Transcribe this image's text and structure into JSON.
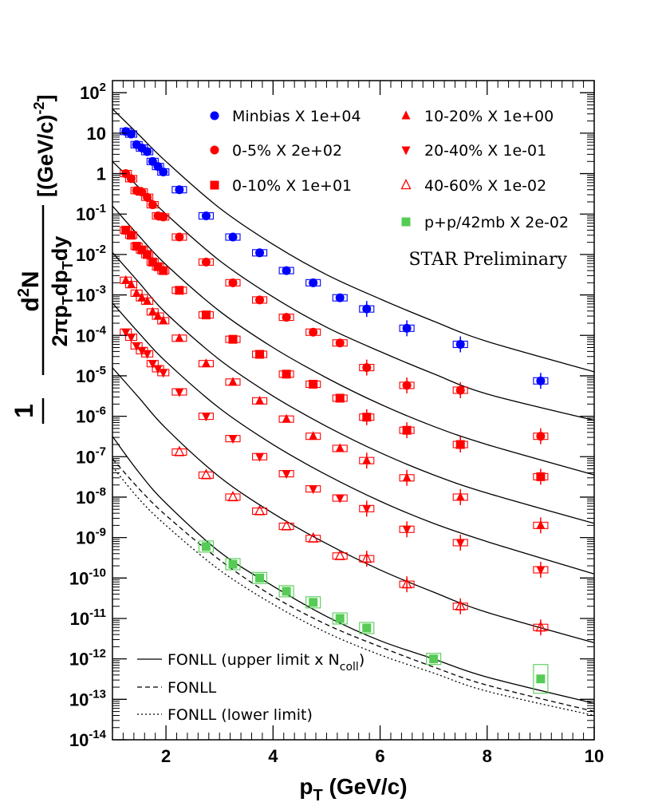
{
  "chart_data": {
    "type": "scatter",
    "x_axis": {
      "label": "p",
      "label_sub": "T",
      "label_unit": "(GeV/c)",
      "range": [
        1,
        10
      ],
      "ticks": [
        2,
        4,
        6,
        8,
        10
      ],
      "tick_labels": [
        "2",
        "4",
        "6",
        "8",
        "10"
      ]
    },
    "y_axis": {
      "scale": "log",
      "range_exp": [
        -14,
        2.3
      ],
      "ticks": [
        {
          "exp": 2,
          "base": "10",
          "sup": "2"
        },
        {
          "exp": 1,
          "base": "10",
          "sup": ""
        },
        {
          "exp": 0,
          "base": "1",
          "sup": ""
        },
        {
          "exp": -1,
          "base": "10",
          "sup": "-1"
        },
        {
          "exp": -2,
          "base": "10",
          "sup": "-2"
        },
        {
          "exp": -3,
          "base": "10",
          "sup": "-3"
        },
        {
          "exp": -4,
          "base": "10",
          "sup": "-4"
        },
        {
          "exp": -5,
          "base": "10",
          "sup": "-5"
        },
        {
          "exp": -6,
          "base": "10",
          "sup": "-6"
        },
        {
          "exp": -7,
          "base": "10",
          "sup": "-7"
        },
        {
          "exp": -8,
          "base": "10",
          "sup": "-8"
        },
        {
          "exp": -9,
          "base": "10",
          "sup": "-9"
        },
        {
          "exp": -10,
          "base": "10",
          "sup": "-10"
        },
        {
          "exp": -11,
          "base": "10",
          "sup": "-11"
        },
        {
          "exp": -12,
          "base": "10",
          "sup": "-12"
        },
        {
          "exp": -13,
          "base": "10",
          "sup": "-13"
        },
        {
          "exp": -14,
          "base": "10",
          "sup": "-14"
        }
      ],
      "label_frac_num_pre": "d",
      "label_frac_num_sup": "2",
      "label_frac_num_post": "N",
      "label_frac_den": "2πp",
      "label_frac_den_sub1": "T",
      "label_frac_den_mid": "dp",
      "label_frac_den_sub2": "T",
      "label_frac_den_post": "dy",
      "label_one": "1",
      "label_unit_pre": "[(GeV/c)",
      "label_unit_sup": "-2",
      "label_unit_post": "]"
    },
    "annotation": "STAR Preliminary",
    "series": [
      {
        "name": "Minbias X 1e+04",
        "marker": "circle",
        "color": "#0000ff",
        "box_color": "#0000ff",
        "points": [
          [
            1.25,
            11
          ],
          [
            1.35,
            9.5
          ],
          [
            1.45,
            5.2
          ],
          [
            1.55,
            4.3
          ],
          [
            1.65,
            3.5
          ],
          [
            1.75,
            2.0
          ],
          [
            1.85,
            1.5
          ],
          [
            1.95,
            1.1
          ],
          [
            2.25,
            0.4
          ],
          [
            2.75,
            0.09
          ],
          [
            3.25,
            0.027
          ],
          [
            3.75,
            0.011
          ],
          [
            4.25,
            0.004
          ],
          [
            4.75,
            0.002
          ],
          [
            5.25,
            0.00085
          ],
          [
            5.75,
            0.00045
          ],
          [
            6.5,
            0.00015
          ],
          [
            7.5,
            6e-05
          ],
          [
            9.0,
            7.5e-06
          ]
        ]
      },
      {
        "name": "0-5% X 2e+02",
        "marker": "circle",
        "color": "#ff0000",
        "box_color": "#ff0000",
        "points": [
          [
            1.25,
            1.0
          ],
          [
            1.35,
            0.75
          ],
          [
            1.45,
            0.38
          ],
          [
            1.55,
            0.35
          ],
          [
            1.65,
            0.26
          ],
          [
            1.75,
            0.17
          ],
          [
            1.85,
            0.09
          ],
          [
            1.95,
            0.085
          ],
          [
            2.25,
            0.027
          ],
          [
            2.75,
            0.0065
          ],
          [
            3.25,
            0.002
          ],
          [
            3.75,
            0.00075
          ],
          [
            4.25,
            0.00028
          ],
          [
            4.75,
            0.00012
          ],
          [
            5.25,
            6.5e-05
          ],
          [
            5.75,
            1.6e-05
          ],
          [
            6.5,
            5.8e-06
          ],
          [
            7.5,
            4.4e-06
          ],
          [
            9.0,
            3.2e-07
          ]
        ]
      },
      {
        "name": "0-10% X 1e+01",
        "marker": "square",
        "color": "#ff0000",
        "box_color": "#ff0000",
        "points": [
          [
            1.25,
            0.04
          ],
          [
            1.35,
            0.03
          ],
          [
            1.45,
            0.016
          ],
          [
            1.55,
            0.013
          ],
          [
            1.65,
            0.01
          ],
          [
            1.75,
            0.0065
          ],
          [
            1.85,
            0.005
          ],
          [
            1.95,
            0.004
          ],
          [
            2.25,
            0.0013
          ],
          [
            2.75,
            0.00032
          ],
          [
            3.25,
            8e-05
          ],
          [
            3.75,
            3.4e-05
          ],
          [
            4.25,
            1.1e-05
          ],
          [
            4.75,
            6.2e-06
          ],
          [
            5.25,
            2.8e-06
          ],
          [
            5.75,
            9.5e-07
          ],
          [
            6.5,
            4.5e-07
          ],
          [
            7.5,
            2e-07
          ],
          [
            9.0,
            3.2e-08
          ]
        ]
      },
      {
        "name": "10-20% X 1e+00",
        "marker": "triangle-up",
        "color": "#ff0000",
        "box_color": "#ff0000",
        "points": [
          [
            1.25,
            0.0023
          ],
          [
            1.35,
            0.0018
          ],
          [
            1.45,
            0.0011
          ],
          [
            1.55,
            0.00085
          ],
          [
            1.65,
            0.0007
          ],
          [
            1.75,
            0.00038
          ],
          [
            1.85,
            0.0003
          ],
          [
            1.95,
            0.00023
          ],
          [
            2.25,
            8.5e-05
          ],
          [
            2.75,
            2e-05
          ],
          [
            3.25,
            7e-06
          ],
          [
            3.75,
            2.4e-06
          ],
          [
            4.25,
            8.5e-07
          ],
          [
            4.75,
            3.2e-07
          ],
          [
            5.25,
            1.6e-07
          ],
          [
            5.75,
            8e-08
          ],
          [
            6.5,
            3e-08
          ],
          [
            7.5,
            1e-08
          ],
          [
            9.0,
            2e-09
          ]
        ]
      },
      {
        "name": "20-40% X 1e-01",
        "marker": "triangle-down",
        "color": "#ff0000",
        "box_color": "#ff0000",
        "points": [
          [
            1.25,
            0.00012
          ],
          [
            1.35,
            9e-05
          ],
          [
            1.45,
            5.5e-05
          ],
          [
            1.55,
            4.2e-05
          ],
          [
            1.65,
            3.5e-05
          ],
          [
            1.75,
            2e-05
          ],
          [
            1.85,
            1.5e-05
          ],
          [
            1.95,
            1.2e-05
          ],
          [
            2.25,
            4e-06
          ],
          [
            2.75,
            1e-06
          ],
          [
            3.25,
            2.8e-07
          ],
          [
            3.75,
            1e-07
          ],
          [
            4.25,
            3.8e-08
          ],
          [
            4.75,
            1.6e-08
          ],
          [
            5.25,
            9.5e-09
          ],
          [
            5.75,
            5.2e-09
          ],
          [
            6.5,
            1.6e-09
          ],
          [
            7.5,
            7.5e-10
          ],
          [
            9.0,
            1.6e-10
          ]
        ]
      },
      {
        "name": "40-60% X 1e-02",
        "marker": "triangle-open",
        "color": "#ff0000",
        "box_color": "#ff0000",
        "points": [
          [
            2.25,
            1.3e-07
          ],
          [
            2.75,
            3.5e-08
          ],
          [
            3.25,
            1e-08
          ],
          [
            3.75,
            4.5e-09
          ],
          [
            4.25,
            1.9e-09
          ],
          [
            4.75,
            9.5e-10
          ],
          [
            5.25,
            3.5e-10
          ],
          [
            5.75,
            3e-10
          ],
          [
            6.5,
            7e-11
          ],
          [
            7.5,
            2e-11
          ],
          [
            9.0,
            6e-12
          ]
        ]
      },
      {
        "name": "p+p/42mb X 2e-02",
        "marker": "square",
        "color": "#55cc55",
        "box_color": "#55cc55",
        "points": [
          [
            2.75,
            6e-10
          ],
          [
            3.25,
            2.2e-10
          ],
          [
            3.75,
            1e-10
          ],
          [
            4.25,
            4.7e-11
          ],
          [
            4.75,
            2.5e-11
          ],
          [
            5.25,
            1e-11
          ],
          [
            5.75,
            5.8e-12
          ],
          [
            7.0,
            1e-12
          ],
          [
            9.0,
            3.2e-13
          ]
        ]
      }
    ],
    "curves": [
      {
        "name": "Minbias",
        "style": "solid",
        "log_points": [
          [
            1.0,
            1.6
          ],
          [
            1.5,
            0.95
          ],
          [
            2.0,
            0.3
          ],
          [
            3.0,
            -0.85
          ],
          [
            4.0,
            -1.75
          ],
          [
            5.0,
            -2.5
          ],
          [
            6.0,
            -3.1
          ],
          [
            7.0,
            -3.65
          ],
          [
            8.0,
            -4.15
          ],
          [
            10.0,
            -4.9
          ]
        ]
      },
      {
        "name": "0-5%",
        "style": "solid",
        "log_points": [
          [
            1.0,
            0.3
          ],
          [
            1.5,
            -0.35
          ],
          [
            2.0,
            -1.0
          ],
          [
            3.0,
            -2.15
          ],
          [
            4.0,
            -3.05
          ],
          [
            5.0,
            -3.8
          ],
          [
            6.0,
            -4.4
          ],
          [
            7.0,
            -4.95
          ],
          [
            8.0,
            -5.45
          ],
          [
            10.0,
            -6.1
          ]
        ]
      },
      {
        "name": "0-10%",
        "style": "solid",
        "log_points": [
          [
            1.0,
            -0.8
          ],
          [
            1.5,
            -1.55
          ],
          [
            2.0,
            -2.25
          ],
          [
            3.0,
            -3.4
          ],
          [
            4.0,
            -4.3
          ],
          [
            5.0,
            -5.05
          ],
          [
            6.0,
            -5.7
          ],
          [
            7.0,
            -6.25
          ],
          [
            8.0,
            -6.7
          ],
          [
            10.0,
            -7.45
          ]
        ]
      },
      {
        "name": "10-20%",
        "style": "solid",
        "log_points": [
          [
            1.0,
            -1.95
          ],
          [
            1.5,
            -2.7
          ],
          [
            2.0,
            -3.45
          ],
          [
            3.0,
            -4.6
          ],
          [
            4.0,
            -5.5
          ],
          [
            5.0,
            -6.25
          ],
          [
            6.0,
            -6.9
          ],
          [
            7.0,
            -7.45
          ],
          [
            8.0,
            -7.9
          ],
          [
            10.0,
            -8.65
          ]
        ]
      },
      {
        "name": "20-40%",
        "style": "solid",
        "log_points": [
          [
            1.0,
            -3.2
          ],
          [
            1.5,
            -3.95
          ],
          [
            2.0,
            -4.65
          ],
          [
            3.0,
            -5.8
          ],
          [
            4.0,
            -6.7
          ],
          [
            5.0,
            -7.45
          ],
          [
            6.0,
            -8.1
          ],
          [
            7.0,
            -8.65
          ],
          [
            8.0,
            -9.1
          ],
          [
            10.0,
            -9.9
          ]
        ]
      },
      {
        "name": "40-60%",
        "style": "solid",
        "log_points": [
          [
            1.0,
            -4.8
          ],
          [
            1.5,
            -5.55
          ],
          [
            2.0,
            -6.3
          ],
          [
            3.0,
            -7.5
          ],
          [
            4.0,
            -8.4
          ],
          [
            5.0,
            -9.15
          ],
          [
            6.0,
            -9.8
          ],
          [
            7.0,
            -10.35
          ],
          [
            8.0,
            -10.85
          ],
          [
            10.0,
            -11.6
          ]
        ]
      },
      {
        "name": "p+p upper",
        "style": "solid",
        "log_points": [
          [
            1.0,
            -6.5
          ],
          [
            1.5,
            -7.4
          ],
          [
            2.0,
            -8.15
          ],
          [
            3.0,
            -9.35
          ],
          [
            4.0,
            -10.2
          ],
          [
            5.0,
            -10.95
          ],
          [
            6.0,
            -11.55
          ],
          [
            7.0,
            -12.0
          ],
          [
            8.0,
            -12.45
          ],
          [
            10.0,
            -13.1
          ]
        ]
      },
      {
        "name": "p+p central",
        "style": "dashed",
        "log_points": [
          [
            1.0,
            -7.05
          ],
          [
            1.5,
            -7.8
          ],
          [
            2.0,
            -8.45
          ],
          [
            3.0,
            -9.55
          ],
          [
            4.0,
            -10.45
          ],
          [
            5.0,
            -11.15
          ],
          [
            6.0,
            -11.7
          ],
          [
            7.0,
            -12.2
          ],
          [
            8.0,
            -12.65
          ],
          [
            10.0,
            -13.3
          ]
        ]
      },
      {
        "name": "p+p lower",
        "style": "dotted",
        "log_points": [
          [
            1.0,
            -7.25
          ],
          [
            1.5,
            -8.05
          ],
          [
            2.0,
            -8.7
          ],
          [
            3.0,
            -9.8
          ],
          [
            4.0,
            -10.65
          ],
          [
            5.0,
            -11.35
          ],
          [
            6.0,
            -11.9
          ],
          [
            7.0,
            -12.35
          ],
          [
            8.0,
            -12.8
          ],
          [
            10.0,
            -13.4
          ]
        ]
      }
    ],
    "line_legend": [
      {
        "style": "solid",
        "text": "FONLL (upper limit x N",
        "sub": "coll",
        "post": ")"
      },
      {
        "style": "dashed",
        "text": "FONLL",
        "sub": "",
        "post": ""
      },
      {
        "style": "dotted",
        "text": "FONLL (lower limit)",
        "sub": "",
        "post": ""
      }
    ]
  }
}
